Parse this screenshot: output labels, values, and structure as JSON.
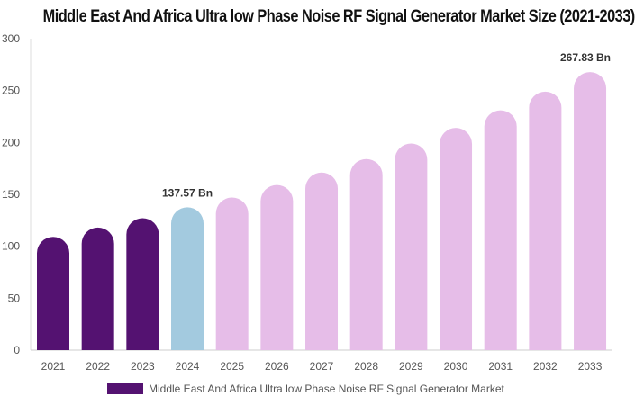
{
  "chart_data": {
    "type": "bar",
    "title": "Middle East And Africa Ultra low Phase Noise RF Signal Generator Market Size (2021-2033)",
    "categories": [
      "2021",
      "2022",
      "2023",
      "2024",
      "2025",
      "2026",
      "2027",
      "2028",
      "2029",
      "2030",
      "2031",
      "2032",
      "2033"
    ],
    "series": [
      {
        "name": "Middle East And Africa Ultra low Phase Noise RF Signal Generator Market",
        "values": [
          109,
          118,
          127,
          137.57,
          147,
          159,
          171,
          184,
          199,
          214,
          231,
          249,
          267.83
        ]
      }
    ],
    "data_labels": {
      "3": "137.57 Bn",
      "12": "267.83 Bn"
    },
    "bar_colors": [
      "#541271",
      "#541271",
      "#541271",
      "#a3cadf",
      "#e6bde8",
      "#e6bde8",
      "#e6bde8",
      "#e6bde8",
      "#e6bde8",
      "#e6bde8",
      "#e6bde8",
      "#e6bde8",
      "#e6bde8"
    ],
    "ylim": [
      0,
      300
    ],
    "yticks": [
      "0",
      "50",
      "100",
      "150",
      "200",
      "250",
      "300"
    ],
    "grid": false,
    "legend_position": "bottom",
    "legend_color": "#541271"
  }
}
